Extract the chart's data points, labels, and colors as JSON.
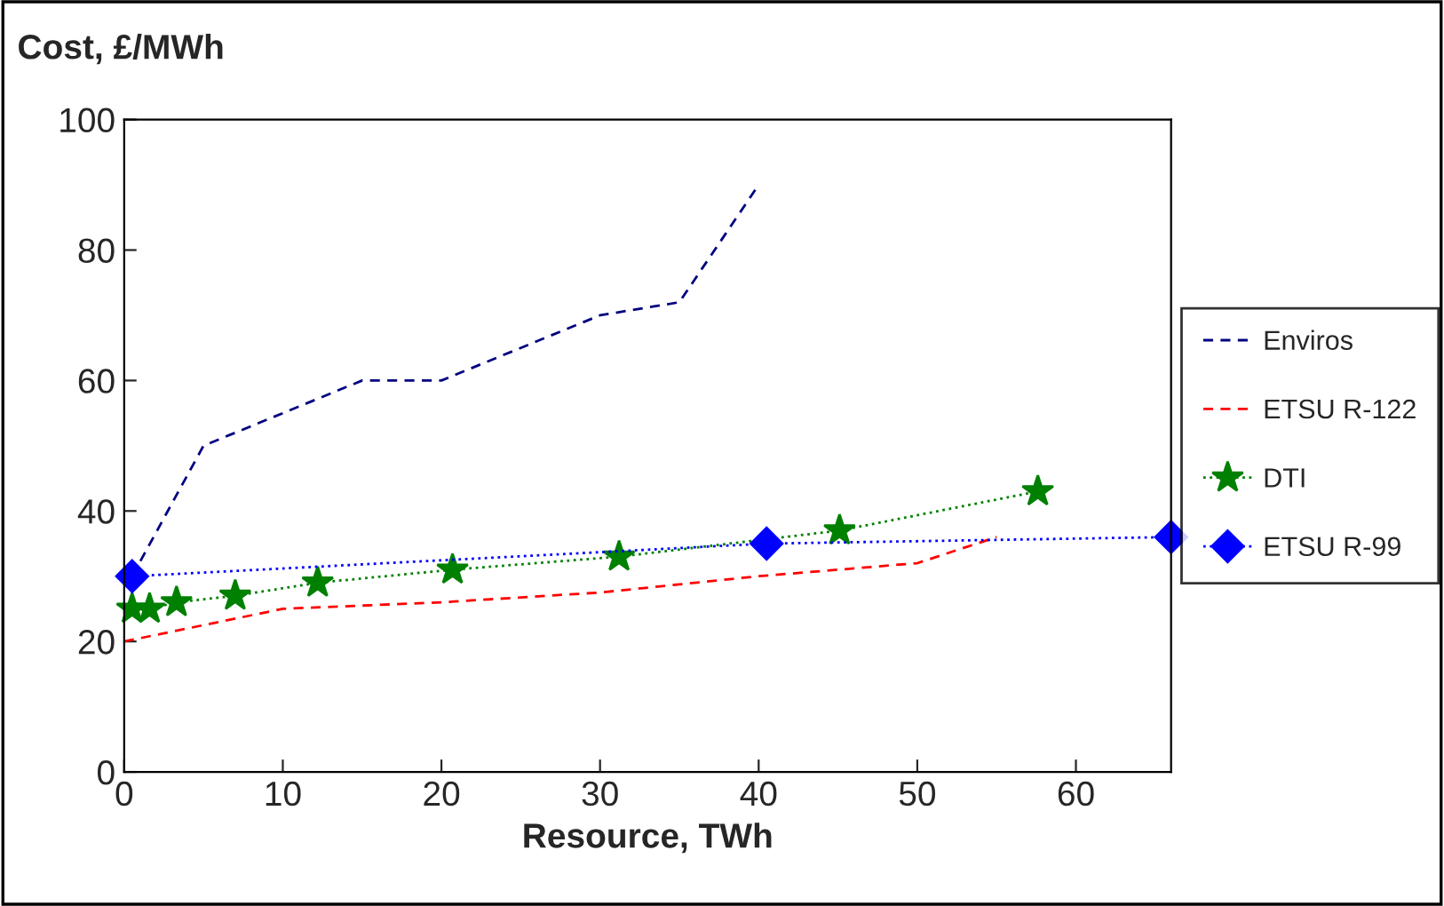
{
  "chart_data": {
    "type": "line",
    "xlabel": "Resource, TWh",
    "ylabel": "Cost, £/MWh",
    "xlim": [
      0,
      66
    ],
    "xticks": [
      0,
      10,
      20,
      30,
      40,
      50,
      60
    ],
    "ylim": [
      0,
      100
    ],
    "yticks": [
      0,
      20,
      40,
      60,
      80,
      100
    ],
    "grid": false,
    "legend": "right",
    "series": [
      {
        "name": "Enviros",
        "color": "#000080",
        "line_style": "dashed",
        "marker": "none",
        "x": [
          0.5,
          5,
          10,
          15,
          20,
          25,
          30,
          35,
          40
        ],
        "values": [
          30,
          50,
          55,
          60,
          60,
          65,
          70,
          72,
          90
        ]
      },
      {
        "name": "ETSU R-122",
        "color": "#ff0000",
        "line_style": "dashed",
        "marker": "none",
        "x": [
          0,
          10,
          20,
          30,
          40,
          50,
          55
        ],
        "values": [
          20,
          25,
          26,
          27.5,
          30,
          32,
          36
        ]
      },
      {
        "name": "DTI",
        "color": "#008000",
        "line_style": "dotted",
        "marker": "star",
        "x": [
          0.5,
          1.6,
          3.3,
          7,
          12.2,
          20.7,
          31.2,
          45.1,
          57.6
        ],
        "values": [
          25,
          25,
          26,
          27,
          29,
          31,
          33,
          37,
          43
        ]
      },
      {
        "name": "ETSU R-99",
        "color": "#0000ff",
        "line_style": "dotted",
        "marker": "diamond",
        "x": [
          0.5,
          40.5,
          66
        ],
        "values": [
          30,
          35,
          36
        ]
      }
    ]
  }
}
